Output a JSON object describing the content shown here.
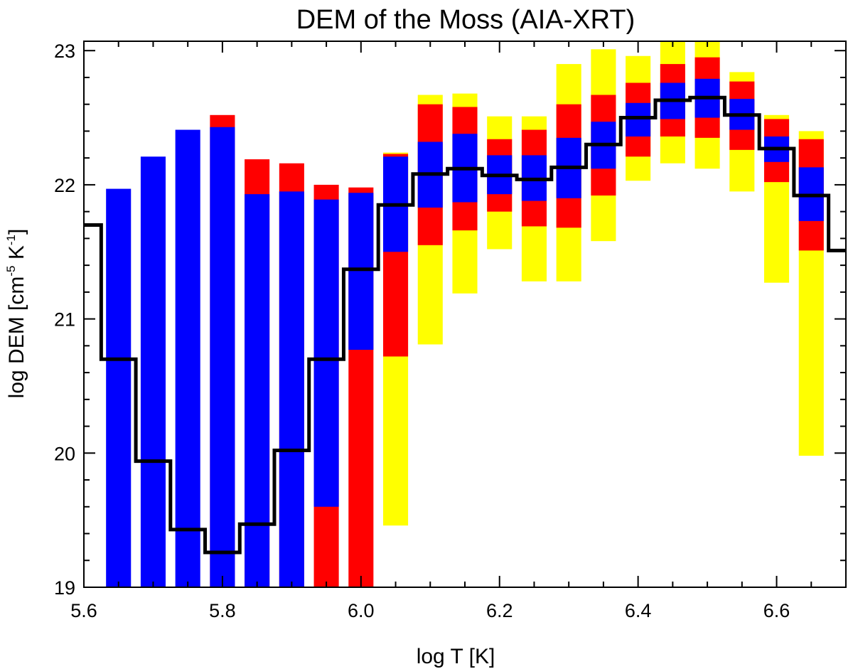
{
  "chart_data": {
    "type": "bar",
    "title": "DEM of the Moss (AIA-XRT)",
    "xlabel": "log T [K]",
    "ylabel": {
      "prefix": "log DEM [cm",
      "sup1": "-5",
      "middle": " K",
      "sup2": "-1",
      "suffix": "]"
    },
    "xlim": [
      5.6,
      6.7
    ],
    "ylim": [
      19.0,
      23.07
    ],
    "x_ticks": [
      "5.6",
      "5.8",
      "6.0",
      "6.2",
      "6.4",
      "6.6"
    ],
    "y_ticks": [
      "19",
      "20",
      "21",
      "22",
      "23"
    ],
    "colors": {
      "yellow": "#ffff00",
      "red": "#ff0000",
      "blue": "#0000ff",
      "line": "#000000"
    },
    "bin_width": 0.05,
    "bins": [
      {
        "center": 5.65,
        "yellow": null,
        "red": null,
        "blue": [
          19.0,
          21.97
        ]
      },
      {
        "center": 5.7,
        "yellow": null,
        "red": null,
        "blue": [
          19.0,
          22.21
        ]
      },
      {
        "center": 5.75,
        "yellow": null,
        "red": null,
        "blue": [
          19.0,
          22.41
        ]
      },
      {
        "center": 5.8,
        "yellow": null,
        "red": [
          19.0,
          22.52
        ],
        "blue": [
          19.0,
          22.43
        ]
      },
      {
        "center": 5.85,
        "yellow": null,
        "red": [
          19.0,
          22.19
        ],
        "blue": [
          19.0,
          21.93
        ]
      },
      {
        "center": 5.9,
        "yellow": null,
        "red": [
          19.0,
          22.16
        ],
        "blue": [
          19.0,
          21.95
        ]
      },
      {
        "center": 5.95,
        "yellow": null,
        "red": [
          19.0,
          22.0
        ],
        "blue": [
          19.6,
          21.89
        ]
      },
      {
        "center": 6.0,
        "yellow": null,
        "red": [
          19.0,
          21.98
        ],
        "blue": [
          20.77,
          21.94
        ]
      },
      {
        "center": 6.05,
        "yellow": [
          19.46,
          22.24
        ],
        "red": [
          20.72,
          22.23
        ],
        "blue": [
          21.5,
          22.21
        ]
      },
      {
        "center": 6.1,
        "yellow": [
          20.81,
          22.67
        ],
        "red": [
          21.55,
          22.6
        ],
        "blue": [
          21.83,
          22.32
        ]
      },
      {
        "center": 6.15,
        "yellow": [
          21.19,
          22.68
        ],
        "red": [
          21.66,
          22.58
        ],
        "blue": [
          21.87,
          22.38
        ]
      },
      {
        "center": 6.2,
        "yellow": [
          21.52,
          22.51
        ],
        "red": [
          21.8,
          22.34
        ],
        "blue": [
          21.93,
          22.22
        ]
      },
      {
        "center": 6.25,
        "yellow": [
          21.28,
          22.51
        ],
        "red": [
          21.69,
          22.41
        ],
        "blue": [
          21.88,
          22.22
        ]
      },
      {
        "center": 6.3,
        "yellow": [
          21.28,
          22.9
        ],
        "red": [
          21.68,
          22.6
        ],
        "blue": [
          21.9,
          22.35
        ]
      },
      {
        "center": 6.35,
        "yellow": [
          21.58,
          23.01
        ],
        "red": [
          21.92,
          22.67
        ],
        "blue": [
          22.12,
          22.47
        ]
      },
      {
        "center": 6.4,
        "yellow": [
          22.03,
          22.96
        ],
        "red": [
          22.21,
          22.76
        ],
        "blue": [
          22.36,
          22.61
        ]
      },
      {
        "center": 6.45,
        "yellow": [
          22.16,
          23.07
        ],
        "red": [
          22.36,
          22.9
        ],
        "blue": [
          22.49,
          22.76
        ]
      },
      {
        "center": 6.5,
        "yellow": [
          22.12,
          23.07
        ],
        "red": [
          22.35,
          22.95
        ],
        "blue": [
          22.5,
          22.79
        ]
      },
      {
        "center": 6.55,
        "yellow": [
          21.95,
          22.84
        ],
        "red": [
          22.26,
          22.77
        ],
        "blue": [
          22.41,
          22.64
        ]
      },
      {
        "center": 6.6,
        "yellow": [
          21.27,
          22.52
        ],
        "red": [
          22.02,
          22.49
        ],
        "blue": [
          22.17,
          22.36
        ]
      },
      {
        "center": 6.65,
        "yellow": [
          19.98,
          22.4
        ],
        "red": [
          21.51,
          22.34
        ],
        "blue": [
          21.73,
          22.13
        ]
      }
    ],
    "step_line": {
      "edges": [
        5.6,
        5.625,
        5.675,
        5.725,
        5.775,
        5.825,
        5.875,
        5.925,
        5.975,
        6.025,
        6.075,
        6.125,
        6.175,
        6.225,
        6.275,
        6.325,
        6.375,
        6.425,
        6.475,
        6.525,
        6.575,
        6.625,
        6.675,
        6.7
      ],
      "values": [
        21.7,
        20.7,
        19.94,
        19.43,
        19.26,
        19.47,
        20.02,
        20.7,
        21.37,
        21.85,
        22.08,
        22.12,
        22.07,
        22.04,
        22.13,
        22.3,
        22.5,
        22.63,
        22.65,
        22.52,
        22.27,
        21.92,
        21.51
      ]
    }
  }
}
